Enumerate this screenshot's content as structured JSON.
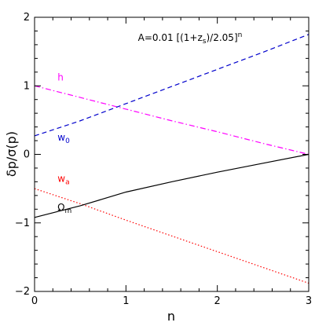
{
  "chart_data": {
    "type": "line",
    "title": "",
    "annotation": {
      "prefix": "A=0.01 [(1+z",
      "sub": "s",
      "mid": ")/2.05]",
      "sup": "n"
    },
    "xlabel": "n",
    "ylabel": "δp/σ(p)",
    "xlim": [
      0,
      3
    ],
    "ylim": [
      -2,
      2
    ],
    "xticks": [
      0,
      1,
      2,
      3
    ],
    "yticks": [
      -2,
      -1,
      0,
      1,
      2
    ],
    "xtick_labels": [
      "0",
      "1",
      "2",
      "3"
    ],
    "ytick_labels": [
      "−2",
      "−1",
      "0",
      "1",
      "2"
    ],
    "grid": false,
    "series": [
      {
        "name": "h",
        "label_main": "h",
        "label_sub": "",
        "color": "#ff00ff",
        "dash": "dashdot",
        "label_at": [
          0.2,
          1.08
        ],
        "x": [
          0,
          0.5,
          1,
          1.5,
          2,
          2.5,
          3
        ],
        "y": [
          1.0,
          0.83,
          0.66,
          0.49,
          0.33,
          0.16,
          0.0
        ]
      },
      {
        "name": "w0",
        "label_main": "w",
        "label_sub": "0",
        "color": "#0000cc",
        "dash": "dashed",
        "label_at": [
          0.2,
          0.2
        ],
        "x": [
          0,
          0.5,
          1,
          1.5,
          2,
          2.5,
          3
        ],
        "y": [
          0.27,
          0.49,
          0.74,
          0.99,
          1.24,
          1.49,
          1.75
        ]
      },
      {
        "name": "wa",
        "label_main": "w",
        "label_sub": "a",
        "color": "#ff0000",
        "dash": "dotted",
        "label_at": [
          0.2,
          -0.4
        ],
        "x": [
          0,
          0.5,
          1,
          1.5,
          2,
          2.5,
          3
        ],
        "y": [
          -0.5,
          -0.72,
          -0.96,
          -1.19,
          -1.42,
          -1.65,
          -1.88
        ]
      },
      {
        "name": "Ωm",
        "label_main": "Ω",
        "label_sub": "m",
        "color": "#000000",
        "dash": "solid",
        "label_at": [
          0.2,
          -0.82
        ],
        "x": [
          0,
          0.5,
          1,
          1.5,
          2,
          2.5,
          3
        ],
        "y": [
          -0.92,
          -0.75,
          -0.55,
          -0.4,
          -0.26,
          -0.13,
          0.0
        ]
      }
    ]
  }
}
